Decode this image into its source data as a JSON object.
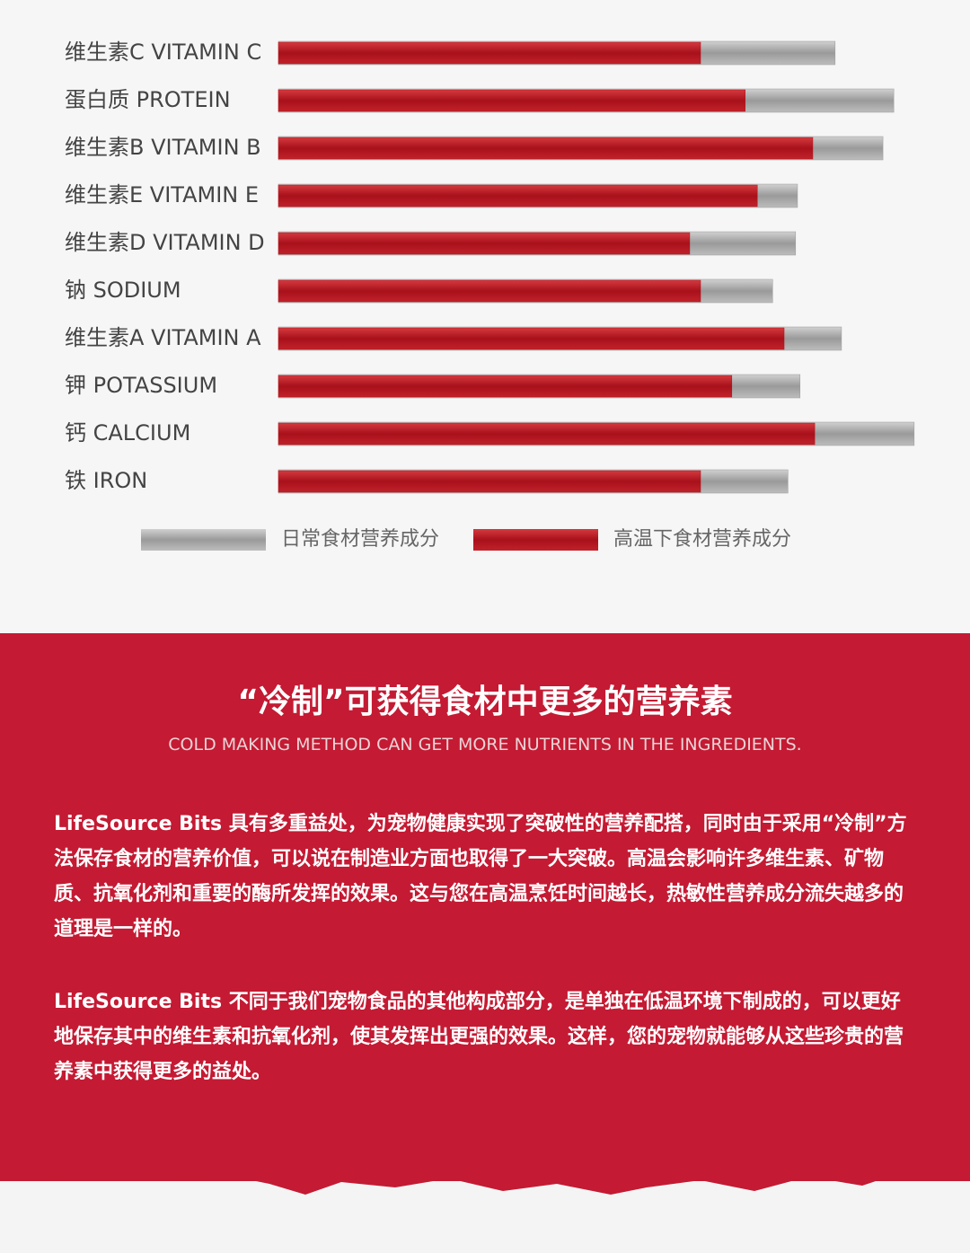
{
  "chart_data": {
    "type": "bar",
    "orientation": "horizontal",
    "categories": [
      "维生素C VITAMIN C",
      "蛋白质 PROTEIN",
      "维生素B VITAMIN B",
      "维生素E VITAMIN E",
      "维生素D VITAMIN D",
      "钠 SODIUM",
      "维生素A VITAMIN A",
      "钾 POTASSIUM",
      "钙 CALCIUM",
      "铁 IRON"
    ],
    "xlim": [
      0,
      100
    ],
    "series": [
      {
        "name": "日常食材营养成分",
        "color": "#9a9a9a",
        "values": [
          87.3,
          96.5,
          94.8,
          81.4,
          81.1,
          77.5,
          88.3,
          81.8,
          99.7,
          79.9
        ]
      },
      {
        "name": "高温下食材营养成分",
        "color": "#b5121b",
        "values": [
          66.2,
          73.2,
          83.8,
          75.1,
          64.5,
          66.2,
          79.3,
          71.1,
          84.1,
          66.2
        ]
      }
    ]
  },
  "section": {
    "title": "“冷制”可获得食材中更多的营养素",
    "subtitle": "COLD MAKING METHOD CAN GET MORE NUTRIENTS IN THE INGREDIENTS.",
    "paragraphs": [
      "LifeSource Bits 具有多重益处，为宠物健康实现了突破性的营养配搭，同时由于采用“冷制”方法保存食材的营养价值，可以说在制造业方面也取得了一大突破。高温会影响许多维生素、矿物质、抗氧化剂和重要的酶所发挥的效果。这与您在高温烹饪时间越长，热敏性营养成分流失越多的道理是一样的。",
      "LifeSource Bits 不同于我们宠物食品的其他构成部分，是单独在低温环境下制成的，可以更好地保存其中的维生素和抗氧化剂，使其发挥出更强的效果。这样，您的宠物就能够从这些珍贵的营养素中获得更多的益处。"
    ]
  }
}
